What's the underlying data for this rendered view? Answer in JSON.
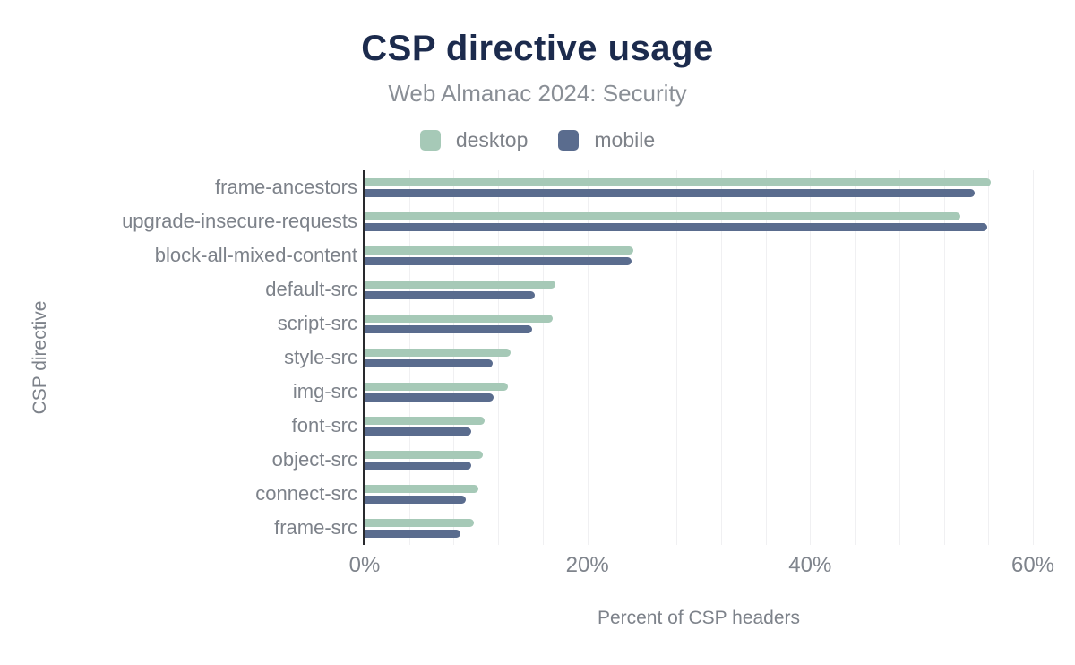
{
  "title": "CSP directive usage",
  "subtitle": "Web Almanac 2024: Security",
  "legend": [
    {
      "label": "desktop",
      "color": "#a6c9b7"
    },
    {
      "label": "mobile",
      "color": "#5a6c8e"
    }
  ],
  "colors": {
    "title": "#1c2b4d",
    "subtitle": "#8a8f96",
    "axis_text": "#7d828a",
    "gridline": "#f0f0f2",
    "axis_line": "#28292d",
    "background": "#ffffff"
  },
  "chart_data": {
    "type": "bar",
    "orientation": "horizontal",
    "title": "CSP directive usage",
    "subtitle": "Web Almanac 2024: Security",
    "xlabel": "Percent of CSP headers",
    "ylabel": "CSP directive",
    "xlim": [
      0,
      60
    ],
    "x_ticks": [
      {
        "label": "0%",
        "value": 0
      },
      {
        "label": "20%",
        "value": 20
      },
      {
        "label": "40%",
        "value": 40
      },
      {
        "label": "60%",
        "value": 60
      }
    ],
    "grid": "vertical, minor lines every 4%, legend top-center",
    "categories": [
      "frame-ancestors",
      "upgrade-insecure-requests",
      "block-all-mixed-content",
      "default-src",
      "script-src",
      "style-src",
      "img-src",
      "font-src",
      "object-src",
      "connect-src",
      "frame-src"
    ],
    "series": [
      {
        "name": "desktop",
        "color": "#a6c9b7",
        "values": [
          56.2,
          53.5,
          24.1,
          17.1,
          16.9,
          13.1,
          12.9,
          10.8,
          10.6,
          10.2,
          9.8
        ]
      },
      {
        "name": "mobile",
        "color": "#5a6c8e",
        "values": [
          54.8,
          55.9,
          24.0,
          15.3,
          15.0,
          11.5,
          11.6,
          9.6,
          9.6,
          9.1,
          8.6
        ]
      }
    ]
  }
}
